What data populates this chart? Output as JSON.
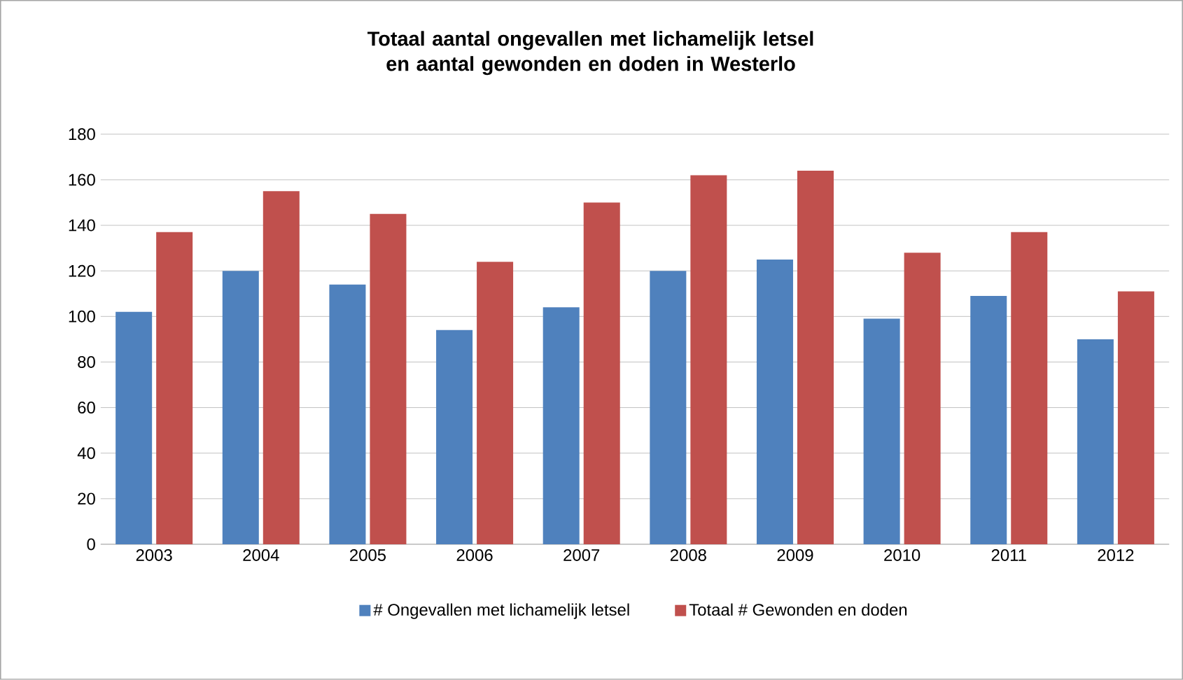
{
  "chart_data": {
    "type": "bar",
    "title": "Totaal aantal ongevallen met lichamelijk letsel en aantal gewonden en doden in Westerlo",
    "categories": [
      "2003",
      "2004",
      "2005",
      "2006",
      "2007",
      "2008",
      "2009",
      "2010",
      "2011",
      "2012"
    ],
    "series": [
      {
        "name": "# Ongevallen met lichamelijk letsel",
        "color": "#4f81bd",
        "values": [
          102,
          120,
          114,
          94,
          104,
          120,
          125,
          99,
          109,
          90
        ]
      },
      {
        "name": "Totaal # Gewonden en doden",
        "color": "#c0504d",
        "values": [
          137,
          155,
          145,
          124,
          150,
          162,
          164,
          128,
          137,
          111
        ]
      }
    ],
    "ylim": [
      0,
      180
    ],
    "yticks": [
      0,
      20,
      40,
      60,
      80,
      100,
      120,
      140,
      160,
      180
    ],
    "grid": "y",
    "legend": "bottom"
  }
}
